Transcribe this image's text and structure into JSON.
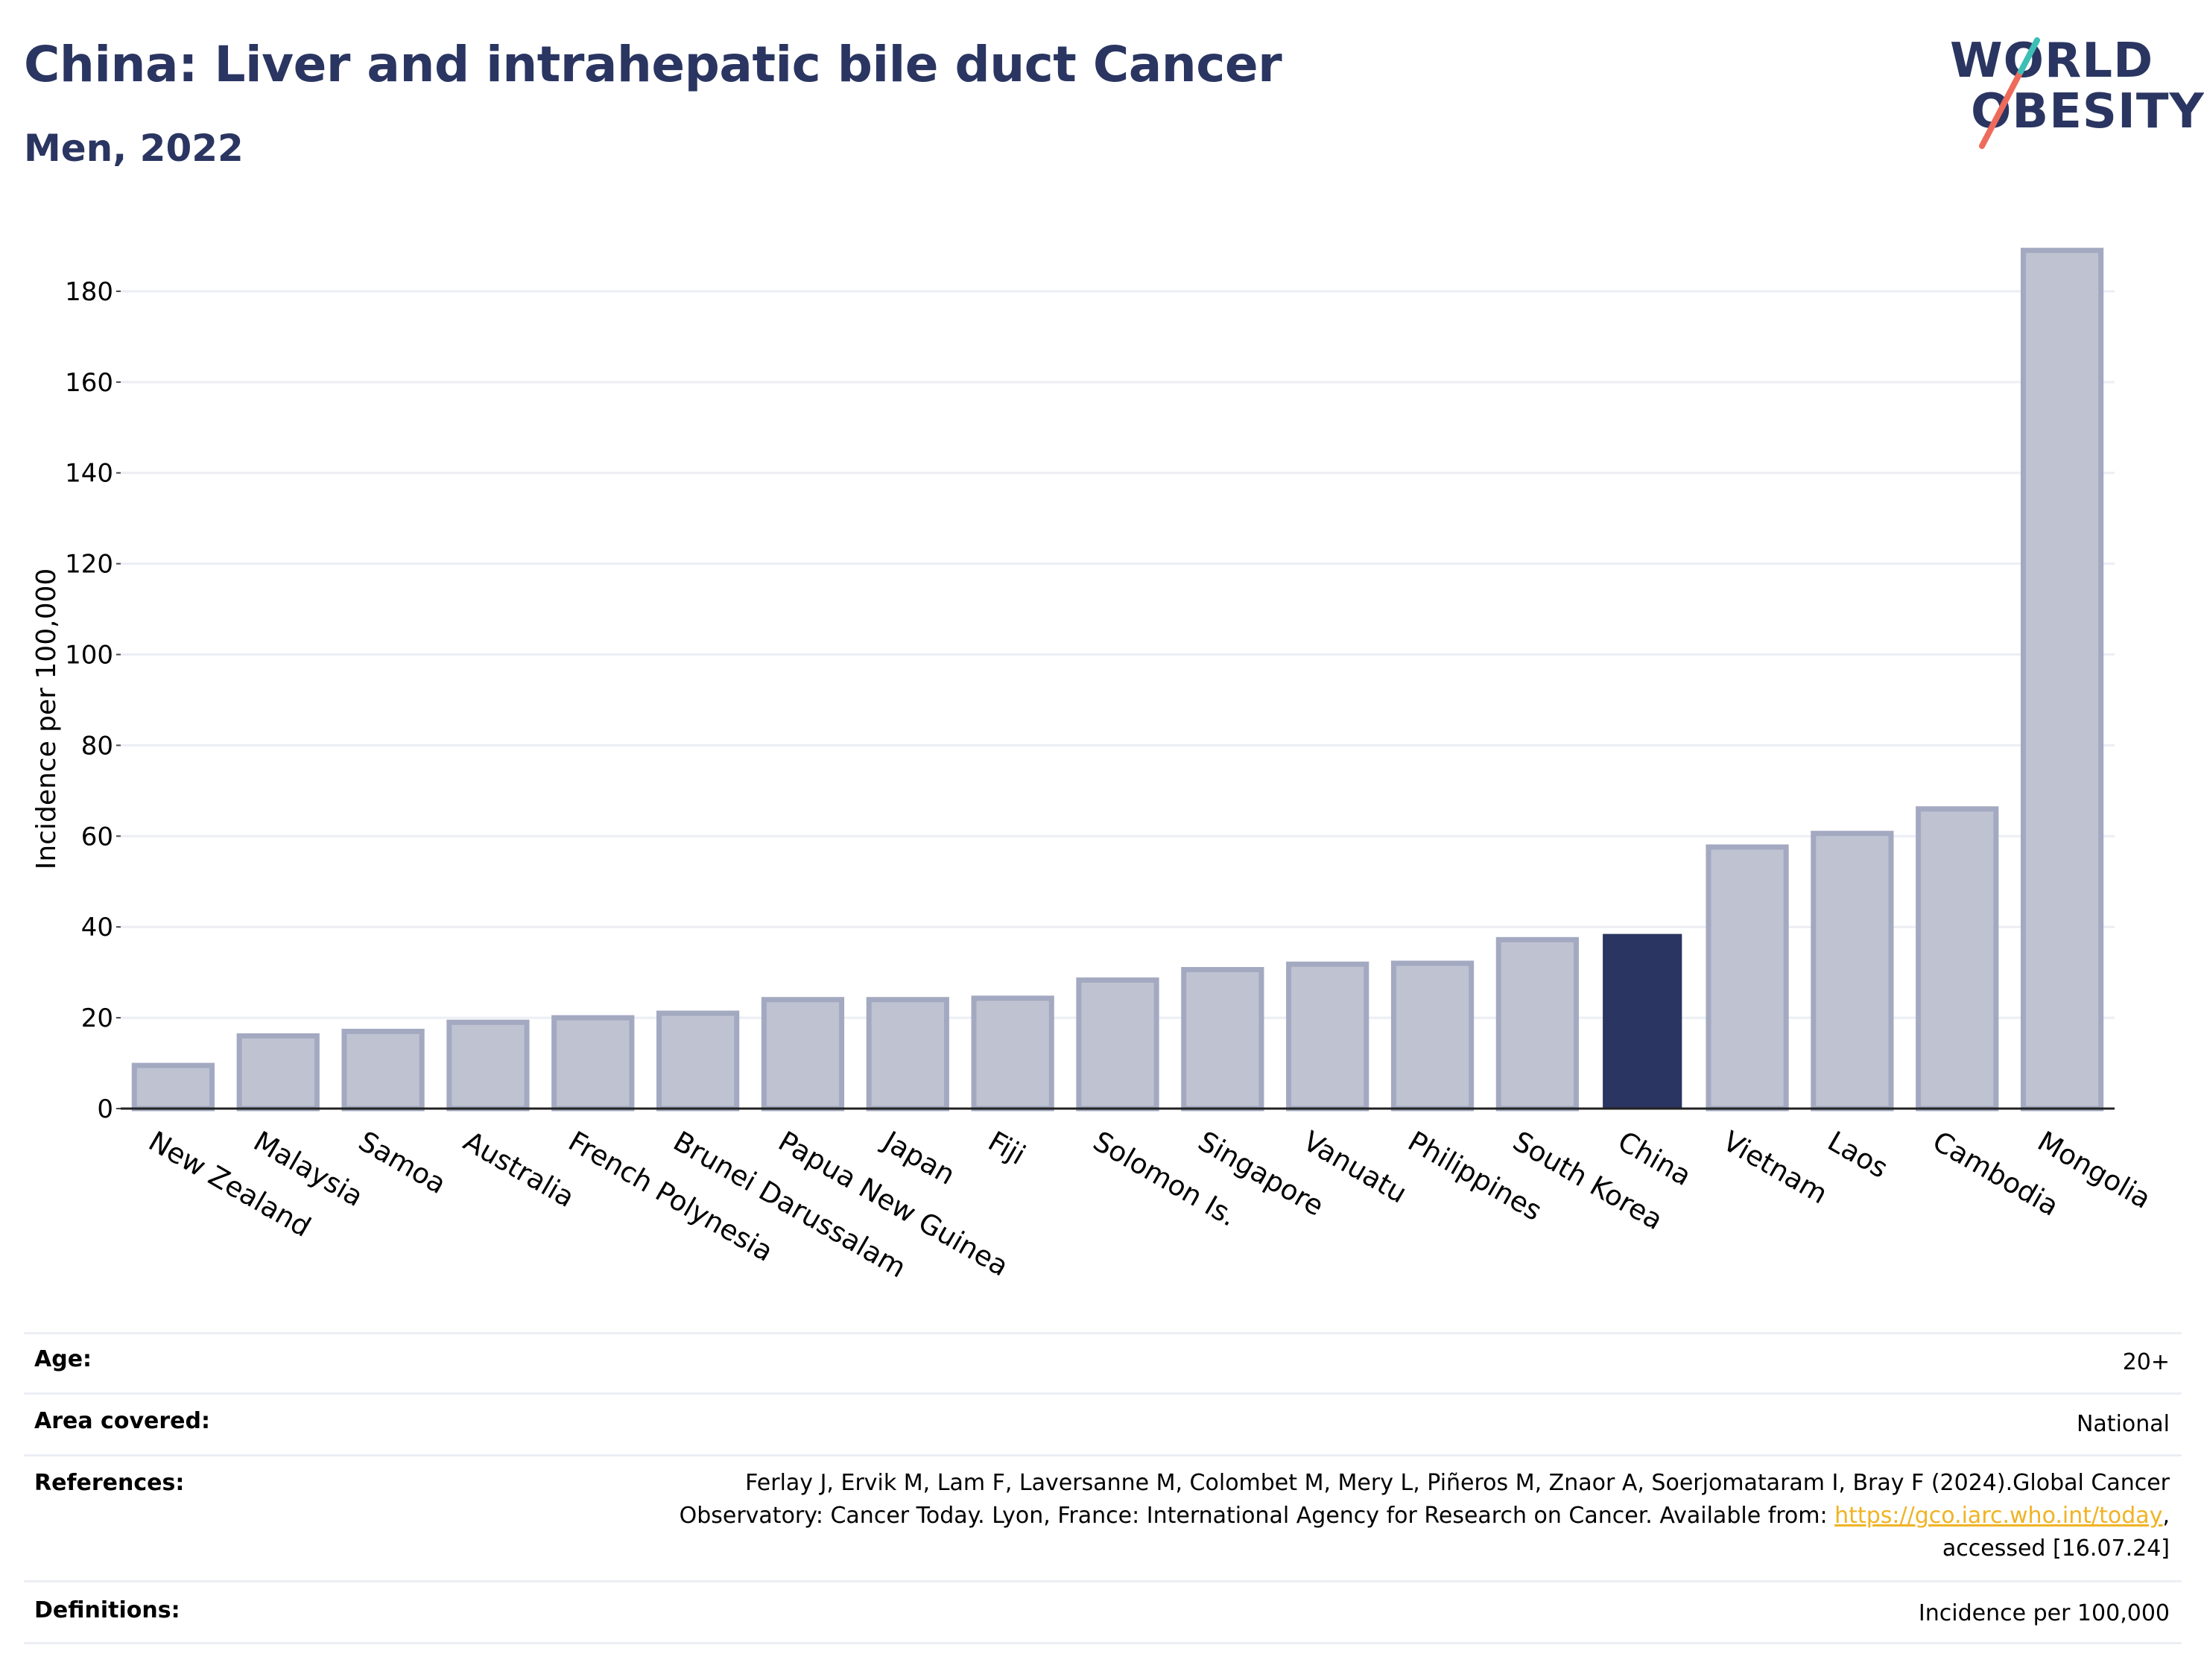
{
  "header": {
    "title": "China: Liver and intrahepatic bile duct Cancer",
    "subtitle": "Men, 2022"
  },
  "logo": {
    "line1": "WORLD",
    "line2": "OBESITY",
    "colors": {
      "navy": "#2a3561",
      "teal": "#3cbfb4",
      "coral": "#ee6b5b"
    }
  },
  "chart_data": {
    "type": "bar",
    "title": "",
    "xlabel": "",
    "ylabel": "Incidence per 100,000",
    "ylim": [
      0,
      190
    ],
    "yticks": [
      0,
      20,
      40,
      60,
      80,
      100,
      120,
      140,
      160,
      180
    ],
    "grid": true,
    "highlight": "China",
    "colors": {
      "bar": "#bfc3d1",
      "bar_border": "#a3a9c0",
      "highlight": "#2a3561",
      "grid": "#eceef4"
    },
    "categories": [
      "New Zealand",
      "Malaysia",
      "Samoa",
      "Australia",
      "French Polynesia",
      "Brunei Darussalam",
      "Papua New Guinea",
      "Japan",
      "Fiji",
      "Solomon Is.",
      "Singapore",
      "Vanuatu",
      "Philippines",
      "South Korea",
      "China",
      "Vietnam",
      "Laos",
      "Cambodia",
      "Mongolia"
    ],
    "values": [
      9.5,
      16,
      17,
      19,
      20,
      21,
      24,
      24,
      24.3,
      28.3,
      30.6,
      31.8,
      32,
      37.2,
      38.3,
      57.6,
      60.6,
      66,
      189
    ]
  },
  "meta": {
    "rows": [
      {
        "label": "Age:",
        "value": "20+"
      },
      {
        "label": "Area covered:",
        "value": "National"
      },
      {
        "label": "References:",
        "value_line1": "Ferlay J, Ervik M, Lam F, Laversanne M, Colombet M, Mery L, Piñeros M, Znaor A, Soerjomataram I, Bray F (2024).Global Cancer",
        "value_line2_pre": "Observatory: Cancer Today. Lyon, France: International Agency for Research on Cancer. Available from: ",
        "value_link": "https://gco.iarc.who.int/today",
        "value_line2_post": ",",
        "value_line3": "accessed [16.07.24]"
      },
      {
        "label": "Definitions:",
        "value": "Incidence per 100,000"
      }
    ]
  }
}
